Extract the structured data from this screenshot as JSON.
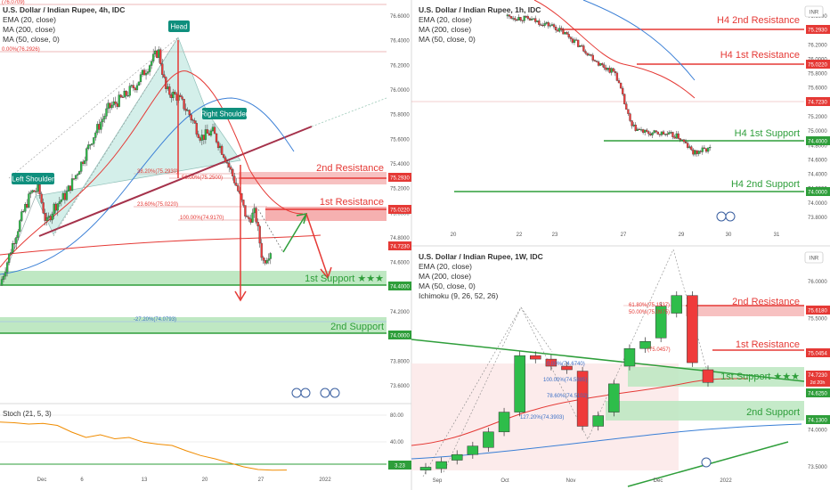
{
  "colors": {
    "up": "#2ebd4a",
    "down": "#ef3b3b",
    "resistance": "#e53935",
    "support": "#2e9e3a",
    "zone_red": "#f7c1c1",
    "zone_green": "#bfe8c3",
    "ema": "#e53935",
    "ma200": "#e53935",
    "ma50": "#3a7fd6",
    "pattern": "#9fdcd0",
    "neckline": "#a5324b",
    "stoch": "#f08c00",
    "badge_bg": "#0f8f7d",
    "price_badge": "#e53935",
    "support_badge": "#2e9e3a"
  },
  "panels": {
    "h4": {
      "legend": [
        "U.S. Dollar / Indian Rupee, 4h, IDC",
        "EMA (20, close)",
        "MA (200, close)",
        "MA (50, close, 0)"
      ],
      "x_ticks": [
        "Dec",
        "6",
        "13",
        "20",
        "27",
        "2022"
      ],
      "y_ticks": [
        "76.6000",
        "76.4000",
        "76.2000",
        "76.0000",
        "75.8000",
        "75.6000",
        "75.4000",
        "75.2000",
        "75.0000",
        "74.8000",
        "74.6000",
        "74.4000",
        "74.2000",
        "74.0000",
        "73.8000",
        "73.6000"
      ],
      "price_tag": "74.7230",
      "res2_tag": "75.2930",
      "res1_tag": "75.0220",
      "sup1_tag": "74.4000",
      "sup2_tag": "74.0000",
      "labels": {
        "res2": "2nd Resistance",
        "res1": "1st Resistance",
        "sup1": "1st Support ★★★",
        "sup2": "2nd Support",
        "head": "Head",
        "left_shoulder": "Left Shoulder",
        "right_shoulder": "Right Shoulder"
      },
      "fibs": {
        "f1": "38.20%(75.2930)",
        "f2": "50.00%(75.2500)",
        "f3": "23.60%(75.0220)",
        "f4": "100.00%(74.9170)",
        "f5": "-27.20%(74.0793)",
        "f0": "0.00%(76.2926)",
        "ftop": "(76.0709)"
      },
      "stoch": {
        "legend": "Stoch (21, 5, 3)",
        "y_ticks": [
          "80.00",
          "40.00"
        ],
        "value_tag": "3.23"
      }
    },
    "h1": {
      "legend": [
        "U.S. Dollar / Indian Rupee, 1h, IDC",
        "EMA (20, close)",
        "MA (200, close)",
        "MA (50, close, 0)"
      ],
      "x_ticks": [
        "20",
        "22",
        "23",
        "27",
        "29",
        "30",
        "31"
      ],
      "y_ticks": [
        "76.6000",
        "76.4000",
        "76.2000",
        "76.0000",
        "75.8000",
        "75.6000",
        "75.4000",
        "75.2000",
        "75.0000",
        "74.8000",
        "74.6000",
        "74.4000",
        "74.2000",
        "74.0000",
        "73.8000"
      ],
      "price_tag": "74.7230",
      "res2_tag": "75.2930",
      "res1_tag": "75.0220",
      "sup1_tag": "74.4000",
      "sup2_tag": "74.0000",
      "labels": {
        "res2": "H4 2nd Resistance",
        "res1": "H4 1st Resistance",
        "sup1": "H4 1st Support",
        "sup2": "H4 2nd Support"
      },
      "currency": "INR"
    },
    "w1": {
      "legend": [
        "U.S. Dollar / Indian Rupee, 1W, IDC",
        "EMA (20, close)",
        "MA (200, close)",
        "MA (50, close, 0)",
        "Ichimoku (9, 26, 52, 26)"
      ],
      "x_ticks": [
        "Sep",
        "Oct",
        "Nov",
        "Dec",
        "2022"
      ],
      "y_ticks": [
        "76.0000",
        "75.5000",
        "75.0000",
        "74.5000",
        "74.0000",
        "73.5000"
      ],
      "price_tag": "74.7230",
      "price_sub": "2d 20h",
      "res2_tag": "75.6180",
      "res1_tag": "75.0454",
      "sup1_tag": "74.6250",
      "sup2_tag": "74.1300",
      "labels": {
        "res2": "2nd Resistance",
        "res1": "1st Resistance",
        "sup1": "1st Support ★★★",
        "sup2": "2nd Support"
      },
      "fibs": {
        "f1": "61.80%(75.1537)",
        "f2": "50.00%(75.0975)",
        "f3": "(75.0457)",
        "f4": "0.00%(74.6740)",
        "f5": "100.00%(74.5885)",
        "f6": "78.60%(74.5102)",
        "f7": "127.20%(74.3903)"
      },
      "currency": "INR"
    }
  },
  "chart_data": [
    {
      "type": "candlestick",
      "title": "U.S. Dollar / Indian Rupee, 4h, IDC",
      "ylim": [
        73.55,
        76.75
      ],
      "levels": {
        "res2": 75.293,
        "res1": 75.022,
        "sup1": 74.4,
        "sup2": 74.0,
        "last": 74.723
      },
      "close_path": [
        {
          "x": 0.0,
          "y": 74.42
        },
        {
          "x": 0.03,
          "y": 74.75
        },
        {
          "x": 0.06,
          "y": 75.05
        },
        {
          "x": 0.08,
          "y": 75.22
        },
        {
          "x": 0.1,
          "y": 75.25
        },
        {
          "x": 0.12,
          "y": 74.95
        },
        {
          "x": 0.14,
          "y": 75.1
        },
        {
          "x": 0.17,
          "y": 75.2
        },
        {
          "x": 0.2,
          "y": 75.4
        },
        {
          "x": 0.24,
          "y": 75.7
        },
        {
          "x": 0.28,
          "y": 75.95
        },
        {
          "x": 0.32,
          "y": 76.05
        },
        {
          "x": 0.35,
          "y": 76.15
        },
        {
          "x": 0.38,
          "y": 76.3
        },
        {
          "x": 0.41,
          "y": 76.45
        },
        {
          "x": 0.43,
          "y": 76.1
        },
        {
          "x": 0.46,
          "y": 76.05
        },
        {
          "x": 0.49,
          "y": 75.9
        },
        {
          "x": 0.52,
          "y": 75.7
        },
        {
          "x": 0.55,
          "y": 75.75
        },
        {
          "x": 0.58,
          "y": 75.55
        },
        {
          "x": 0.61,
          "y": 75.3
        },
        {
          "x": 0.64,
          "y": 74.98
        },
        {
          "x": 0.66,
          "y": 75.05
        },
        {
          "x": 0.68,
          "y": 74.62
        },
        {
          "x": 0.7,
          "y": 74.72
        }
      ]
    },
    {
      "type": "line",
      "title": "Stoch (21, 5, 3)",
      "ylim": [
        0,
        100
      ],
      "series": [
        {
          "name": "Stoch (21, 5, 3)",
          "values": [
            75,
            74,
            72,
            73,
            70,
            60,
            52,
            56,
            50,
            52,
            45,
            42,
            40,
            32,
            25,
            20,
            14,
            8,
            4,
            3,
            3.23
          ]
        }
      ]
    },
    {
      "type": "candlestick",
      "title": "U.S. Dollar / Indian Rupee, 1h, IDC",
      "ylim": [
        73.7,
        76.7
      ],
      "levels": {
        "res2": 75.293,
        "res1": 75.022,
        "sup1": 74.4,
        "sup2": 74.0,
        "last": 74.723
      },
      "close_path": [
        {
          "x": 0.24,
          "y": 76.7
        },
        {
          "x": 0.3,
          "y": 76.65
        },
        {
          "x": 0.36,
          "y": 76.55
        },
        {
          "x": 0.4,
          "y": 76.4
        },
        {
          "x": 0.44,
          "y": 76.2
        },
        {
          "x": 0.48,
          "y": 75.98
        },
        {
          "x": 0.52,
          "y": 75.85
        },
        {
          "x": 0.56,
          "y": 75.05
        },
        {
          "x": 0.6,
          "y": 74.95
        },
        {
          "x": 0.64,
          "y": 74.95
        },
        {
          "x": 0.68,
          "y": 74.9
        },
        {
          "x": 0.72,
          "y": 74.65
        },
        {
          "x": 0.74,
          "y": 74.7
        },
        {
          "x": 0.76,
          "y": 74.72
        }
      ]
    },
    {
      "type": "candlestick",
      "title": "U.S. Dollar / Indian Rupee, 1W, IDC",
      "ylim": [
        73.45,
        76.35
      ],
      "levels": {
        "res2": 75.618,
        "res1": 75.0454,
        "sup1": 74.625,
        "sup2": 74.13,
        "last": 74.723
      },
      "candles": [
        {
          "o": 73.48,
          "c": 73.52
        },
        {
          "o": 73.5,
          "c": 73.6
        },
        {
          "o": 73.62,
          "c": 73.7
        },
        {
          "o": 73.7,
          "c": 73.82
        },
        {
          "o": 73.8,
          "c": 74.02
        },
        {
          "o": 74.02,
          "c": 74.3
        },
        {
          "o": 74.3,
          "c": 75.1
        },
        {
          "o": 75.1,
          "c": 75.05
        },
        {
          "o": 75.05,
          "c": 74.95
        },
        {
          "o": 74.95,
          "c": 74.9
        },
        {
          "o": 74.88,
          "c": 74.1
        },
        {
          "o": 74.1,
          "c": 74.25
        },
        {
          "o": 74.3,
          "c": 74.7
        },
        {
          "o": 74.95,
          "c": 75.2
        },
        {
          "o": 75.2,
          "c": 75.3
        },
        {
          "o": 75.35,
          "c": 75.8
        },
        {
          "o": 75.7,
          "c": 75.95
        },
        {
          "o": 75.95,
          "c": 75.0
        },
        {
          "o": 74.9,
          "c": 74.72
        }
      ]
    }
  ]
}
